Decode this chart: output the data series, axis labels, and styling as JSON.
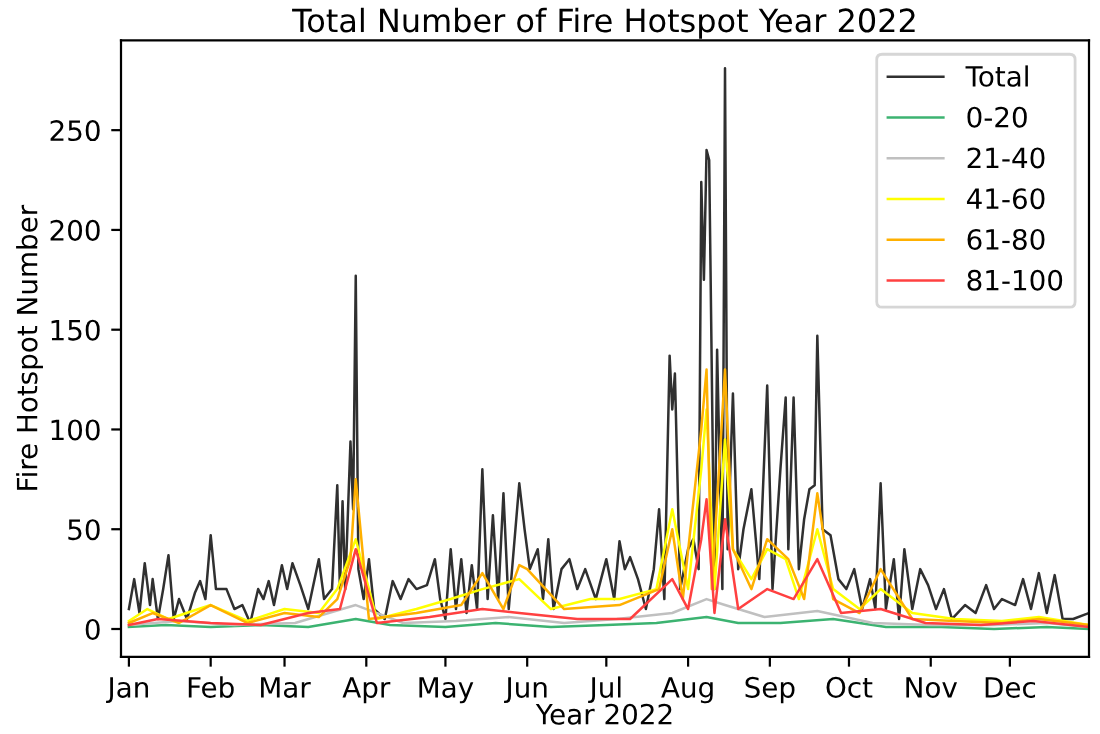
{
  "chart_data": {
    "type": "line",
    "title": "Total Number of Fire Hotspot Year 2022",
    "xlabel": "Year 2022",
    "ylabel": "Fire Hotspot Number",
    "xlim": [
      "2021-12-29",
      "2022-12-31"
    ],
    "xticks": [
      {
        "value": "2022-01-01",
        "label": "Jan"
      },
      {
        "value": "2022-02-01",
        "label": "Feb"
      },
      {
        "value": "2022-03-01",
        "label": "Mar"
      },
      {
        "value": "2022-04-01",
        "label": "Apr"
      },
      {
        "value": "2022-05-01",
        "label": "May"
      },
      {
        "value": "2022-06-01",
        "label": "Jun"
      },
      {
        "value": "2022-07-01",
        "label": "Jul"
      },
      {
        "value": "2022-08-01",
        "label": "Aug"
      },
      {
        "value": "2022-09-01",
        "label": "Sep"
      },
      {
        "value": "2022-10-01",
        "label": "Oct"
      },
      {
        "value": "2022-11-01",
        "label": "Nov"
      },
      {
        "value": "2022-12-01",
        "label": "Dec"
      }
    ],
    "ylim": [
      -14,
      295
    ],
    "yticks": [
      0,
      50,
      100,
      150,
      200,
      250
    ],
    "grid": false,
    "legend": "top right",
    "marker": "none",
    "line_style": "solid",
    "series": [
      {
        "name": "Total",
        "color": "#303030",
        "x": [
          "2022-01-01",
          "2022-01-03",
          "2022-01-05",
          "2022-01-07",
          "2022-01-09",
          "2022-01-10",
          "2022-01-12",
          "2022-01-14",
          "2022-01-16",
          "2022-01-18",
          "2022-01-20",
          "2022-01-23",
          "2022-01-26",
          "2022-01-28",
          "2022-01-30",
          "2022-02-01",
          "2022-02-03",
          "2022-02-07",
          "2022-02-10",
          "2022-02-13",
          "2022-02-16",
          "2022-02-19",
          "2022-02-21",
          "2022-02-23",
          "2022-02-25",
          "2022-02-28",
          "2022-03-02",
          "2022-03-04",
          "2022-03-07",
          "2022-03-10",
          "2022-03-14",
          "2022-03-16",
          "2022-03-19",
          "2022-03-21",
          "2022-03-22",
          "2022-03-23",
          "2022-03-24",
          "2022-03-26",
          "2022-03-27",
          "2022-03-28",
          "2022-03-29",
          "2022-03-31",
          "2022-04-02",
          "2022-04-04",
          "2022-04-08",
          "2022-04-11",
          "2022-04-14",
          "2022-04-17",
          "2022-04-20",
          "2022-04-24",
          "2022-04-27",
          "2022-04-29",
          "2022-05-01",
          "2022-05-03",
          "2022-05-05",
          "2022-05-07",
          "2022-05-09",
          "2022-05-11",
          "2022-05-13",
          "2022-05-15",
          "2022-05-17",
          "2022-05-19",
          "2022-05-21",
          "2022-05-23",
          "2022-05-25",
          "2022-05-29",
          "2022-05-31",
          "2022-06-02",
          "2022-06-05",
          "2022-06-07",
          "2022-06-09",
          "2022-06-11",
          "2022-06-14",
          "2022-06-17",
          "2022-06-20",
          "2022-06-23",
          "2022-06-27",
          "2022-07-01",
          "2022-07-04",
          "2022-07-06",
          "2022-07-08",
          "2022-07-10",
          "2022-07-13",
          "2022-07-16",
          "2022-07-19",
          "2022-07-21",
          "2022-07-23",
          "2022-07-25",
          "2022-07-26",
          "2022-07-27",
          "2022-07-29",
          "2022-08-01",
          "2022-08-03",
          "2022-08-05",
          "2022-08-06",
          "2022-08-07",
          "2022-08-08",
          "2022-08-09",
          "2022-08-11",
          "2022-08-12",
          "2022-08-14",
          "2022-08-15",
          "2022-08-16",
          "2022-08-18",
          "2022-08-20",
          "2022-08-22",
          "2022-08-25",
          "2022-08-28",
          "2022-08-31",
          "2022-09-02",
          "2022-09-05",
          "2022-09-07",
          "2022-09-08",
          "2022-09-10",
          "2022-09-12",
          "2022-09-14",
          "2022-09-16",
          "2022-09-18",
          "2022-09-19",
          "2022-09-21",
          "2022-09-24",
          "2022-09-27",
          "2022-09-30",
          "2022-10-03",
          "2022-10-06",
          "2022-10-09",
          "2022-10-11",
          "2022-10-13",
          "2022-10-15",
          "2022-10-18",
          "2022-10-20",
          "2022-10-22",
          "2022-10-25",
          "2022-10-28",
          "2022-10-31",
          "2022-11-03",
          "2022-11-06",
          "2022-11-09",
          "2022-11-14",
          "2022-11-18",
          "2022-11-22",
          "2022-11-25",
          "2022-11-28",
          "2022-12-03",
          "2022-12-06",
          "2022-12-09",
          "2022-12-12",
          "2022-12-15",
          "2022-12-18",
          "2022-12-21",
          "2022-12-25",
          "2022-12-31"
        ],
        "values": [
          10,
          25,
          8,
          33,
          12,
          25,
          5,
          20,
          37,
          5,
          15,
          5,
          18,
          24,
          15,
          47,
          20,
          20,
          10,
          12,
          3,
          20,
          15,
          24,
          12,
          32,
          20,
          33,
          22,
          10,
          35,
          15,
          20,
          72,
          20,
          64,
          20,
          94,
          60,
          177,
          30,
          15,
          35,
          10,
          5,
          24,
          15,
          25,
          20,
          22,
          35,
          15,
          5,
          40,
          10,
          35,
          8,
          32,
          10,
          80,
          15,
          57,
          15,
          68,
          10,
          73,
          50,
          30,
          40,
          15,
          45,
          10,
          30,
          35,
          20,
          30,
          15,
          35,
          15,
          44,
          30,
          36,
          25,
          10,
          30,
          60,
          15,
          137,
          110,
          128,
          20,
          40,
          45,
          30,
          224,
          175,
          240,
          235,
          20,
          140,
          20,
          281,
          40,
          118,
          30,
          50,
          70,
          25,
          122,
          20,
          80,
          116,
          40,
          116,
          30,
          55,
          70,
          72,
          147,
          50,
          47,
          25,
          20,
          30,
          10,
          25,
          10,
          73,
          10,
          35,
          5,
          40,
          10,
          30,
          22,
          10,
          20,
          5,
          12,
          8,
          22,
          10,
          15,
          12,
          25,
          10,
          28,
          8,
          27,
          5,
          5,
          8
        ]
      },
      {
        "name": "0-20",
        "color": "#3cb371",
        "x": [
          "2022-01-01",
          "2022-01-15",
          "2022-02-01",
          "2022-02-20",
          "2022-03-10",
          "2022-03-28",
          "2022-04-10",
          "2022-05-01",
          "2022-05-20",
          "2022-06-10",
          "2022-07-01",
          "2022-07-20",
          "2022-08-08",
          "2022-08-20",
          "2022-09-05",
          "2022-09-25",
          "2022-10-15",
          "2022-11-05",
          "2022-11-25",
          "2022-12-15",
          "2022-12-31"
        ],
        "values": [
          1,
          2,
          1,
          2,
          1,
          5,
          2,
          1,
          3,
          1,
          2,
          3,
          6,
          3,
          3,
          5,
          1,
          1,
          0,
          1,
          0
        ]
      },
      {
        "name": "21-40",
        "color": "#c0c0c0",
        "x": [
          "2022-01-01",
          "2022-01-20",
          "2022-02-10",
          "2022-03-05",
          "2022-03-28",
          "2022-04-15",
          "2022-05-05",
          "2022-05-25",
          "2022-06-15",
          "2022-07-05",
          "2022-07-26",
          "2022-08-08",
          "2022-08-15",
          "2022-08-30",
          "2022-09-19",
          "2022-10-10",
          "2022-11-01",
          "2022-11-25",
          "2022-12-15",
          "2022-12-31"
        ],
        "values": [
          2,
          4,
          2,
          3,
          12,
          3,
          4,
          6,
          3,
          5,
          8,
          15,
          12,
          6,
          9,
          3,
          2,
          2,
          3,
          1
        ]
      },
      {
        "name": "41-60",
        "color": "#ffff00",
        "x": [
          "2022-01-01",
          "2022-01-08",
          "2022-01-16",
          "2022-02-01",
          "2022-02-15",
          "2022-03-01",
          "2022-03-14",
          "2022-03-21",
          "2022-03-28",
          "2022-04-05",
          "2022-04-20",
          "2022-05-03",
          "2022-05-15",
          "2022-05-29",
          "2022-06-10",
          "2022-06-25",
          "2022-07-06",
          "2022-07-20",
          "2022-07-26",
          "2022-08-01",
          "2022-08-06",
          "2022-08-08",
          "2022-08-11",
          "2022-08-15",
          "2022-08-18",
          "2022-08-25",
          "2022-08-31",
          "2022-09-07",
          "2022-09-12",
          "2022-09-19",
          "2022-09-25",
          "2022-10-05",
          "2022-10-13",
          "2022-10-25",
          "2022-11-10",
          "2022-11-28",
          "2022-12-12",
          "2022-12-31"
        ],
        "values": [
          4,
          10,
          5,
          12,
          4,
          10,
          8,
          20,
          45,
          5,
          10,
          15,
          20,
          25,
          10,
          15,
          15,
          20,
          60,
          20,
          80,
          110,
          20,
          95,
          40,
          25,
          40,
          35,
          15,
          50,
          20,
          10,
          20,
          8,
          5,
          4,
          6,
          2
        ]
      },
      {
        "name": "61-80",
        "color": "#ffb000",
        "x": [
          "2022-01-01",
          "2022-01-10",
          "2022-01-20",
          "2022-02-01",
          "2022-02-15",
          "2022-03-01",
          "2022-03-14",
          "2022-03-21",
          "2022-03-26",
          "2022-03-28",
          "2022-04-02",
          "2022-04-20",
          "2022-05-07",
          "2022-05-15",
          "2022-05-23",
          "2022-05-29",
          "2022-06-01",
          "2022-06-15",
          "2022-07-06",
          "2022-07-21",
          "2022-07-26",
          "2022-07-30",
          "2022-08-06",
          "2022-08-08",
          "2022-08-10",
          "2022-08-15",
          "2022-08-18",
          "2022-08-25",
          "2022-08-31",
          "2022-09-08",
          "2022-09-14",
          "2022-09-19",
          "2022-09-25",
          "2022-10-05",
          "2022-10-13",
          "2022-10-25",
          "2022-11-10",
          "2022-11-28",
          "2022-12-12",
          "2022-12-31"
        ],
        "values": [
          3,
          8,
          3,
          12,
          3,
          8,
          6,
          15,
          35,
          75,
          5,
          8,
          12,
          28,
          10,
          32,
          30,
          10,
          12,
          20,
          50,
          15,
          100,
          130,
          20,
          130,
          40,
          20,
          45,
          35,
          15,
          68,
          15,
          8,
          30,
          5,
          4,
          3,
          5,
          2
        ]
      },
      {
        "name": "81-100",
        "color": "#ff4040",
        "x": [
          "2022-01-01",
          "2022-01-12",
          "2022-02-01",
          "2022-02-20",
          "2022-03-10",
          "2022-03-22",
          "2022-03-28",
          "2022-04-05",
          "2022-04-25",
          "2022-05-15",
          "2022-05-29",
          "2022-06-20",
          "2022-07-10",
          "2022-07-26",
          "2022-08-01",
          "2022-08-06",
          "2022-08-08",
          "2022-08-11",
          "2022-08-15",
          "2022-08-20",
          "2022-08-31",
          "2022-09-10",
          "2022-09-19",
          "2022-09-28",
          "2022-10-13",
          "2022-10-30",
          "2022-11-20",
          "2022-12-10",
          "2022-12-31"
        ],
        "values": [
          2,
          5,
          3,
          2,
          8,
          10,
          40,
          3,
          6,
          10,
          8,
          5,
          5,
          25,
          10,
          45,
          65,
          8,
          55,
          10,
          20,
          15,
          35,
          8,
          10,
          3,
          2,
          4,
          1
        ]
      }
    ]
  }
}
